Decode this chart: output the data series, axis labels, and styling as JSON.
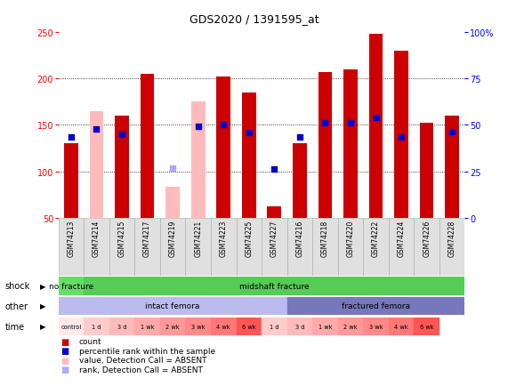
{
  "title": "GDS2020 / 1391595_at",
  "samples": [
    "GSM74213",
    "GSM74214",
    "GSM74215",
    "GSM74217",
    "GSM74219",
    "GSM74221",
    "GSM74223",
    "GSM74225",
    "GSM74227",
    "GSM74216",
    "GSM74218",
    "GSM74220",
    "GSM74222",
    "GSM74224",
    "GSM74226",
    "GSM74228"
  ],
  "red_bars": [
    130,
    0,
    160,
    205,
    0,
    0,
    202,
    185,
    62,
    130,
    207,
    210,
    248,
    230,
    152,
    160
  ],
  "pink_bars": [
    0,
    165,
    0,
    0,
    83,
    175,
    0,
    0,
    0,
    0,
    0,
    0,
    0,
    0,
    0,
    0
  ],
  "blue_dots": [
    137,
    146,
    140,
    0,
    0,
    148,
    150,
    142,
    102,
    137,
    152,
    152,
    158,
    137,
    0,
    143
  ],
  "light_blue_dots": [
    0,
    0,
    0,
    0,
    103,
    0,
    0,
    0,
    0,
    0,
    0,
    0,
    0,
    0,
    0,
    0
  ],
  "absent_red": [
    false,
    true,
    false,
    false,
    true,
    true,
    false,
    false,
    false,
    false,
    false,
    false,
    false,
    false,
    false,
    false
  ],
  "absent_blue": [
    false,
    false,
    false,
    false,
    true,
    false,
    false,
    false,
    false,
    false,
    false,
    false,
    false,
    false,
    false,
    false
  ],
  "ylim_left": [
    50,
    250
  ],
  "ylim_right": [
    0,
    100
  ],
  "yticks_left": [
    50,
    100,
    150,
    200,
    250
  ],
  "yticks_right": [
    0,
    25,
    50,
    75,
    100
  ],
  "ytick_right_labels": [
    "0",
    "25",
    "50",
    "75",
    "100%"
  ],
  "grid_lines": [
    100,
    150,
    200
  ],
  "shock_no_fracture": {
    "label": "no fracture",
    "span": [
      0,
      1
    ],
    "color": "#66dd66"
  },
  "shock_midshaft": {
    "label": "midshaft fracture",
    "span": [
      1,
      16
    ],
    "color": "#55cc55"
  },
  "other_intact": {
    "label": "intact femora",
    "span": [
      0,
      9
    ],
    "color": "#bbbbee"
  },
  "other_fractured": {
    "label": "fractured femora",
    "span": [
      9,
      16
    ],
    "color": "#7777bb"
  },
  "time_labels": [
    "control",
    "1 d",
    "3 d",
    "1 wk",
    "2 wk",
    "3 wk",
    "4 wk",
    "6 wk",
    "1 d",
    "3 d",
    "1 wk",
    "2 wk",
    "3 wk",
    "4 wk",
    "6 wk"
  ],
  "time_colors": [
    "#ffe8e8",
    "#ffcccc",
    "#ffbbbb",
    "#ffaaaa",
    "#ff9999",
    "#ff8888",
    "#ff7777",
    "#ff5555",
    "#ffcccc",
    "#ffbbbb",
    "#ffaaaa",
    "#ff9999",
    "#ff8888",
    "#ff7777",
    "#ff5555"
  ],
  "row_labels": [
    "shock",
    "other",
    "time"
  ],
  "legend_items": [
    {
      "color": "#cc0000",
      "label": "count"
    },
    {
      "color": "#0000cc",
      "label": "percentile rank within the sample"
    },
    {
      "color": "#ffbbbb",
      "label": "value, Detection Call = ABSENT"
    },
    {
      "color": "#aaaaff",
      "label": "rank, Detection Call = ABSENT"
    }
  ],
  "bar_width": 0.55,
  "bg_color": "#ffffff",
  "title_fontsize": 9,
  "axis_fontsize": 7,
  "label_fontsize": 6.5,
  "tick_fontsize": 5.5
}
